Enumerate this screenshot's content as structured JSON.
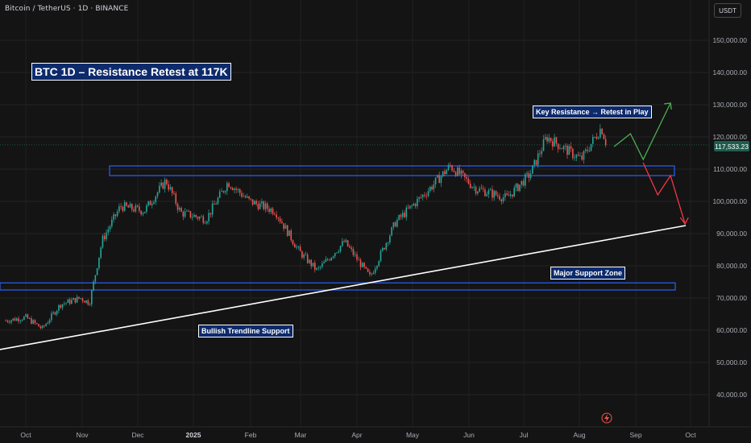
{
  "header": {
    "symbol_line": "Bitcoin / TetherUS · 1D · BINANCE",
    "currency": "USDT"
  },
  "title": "BTC 1D – Resistance Retest at 117K",
  "annotations": {
    "resistance": "Key Resistance → Retest in Play",
    "support_zone": "Major Support Zone",
    "trendline": "Bullish Trendline Support"
  },
  "last_price_label": "117,533.23",
  "colors": {
    "background": "#141414",
    "up_candle": "#26a69a",
    "down_candle": "#ef5350",
    "zone_border": "#2962ff",
    "label_fill": "#0d2a6b",
    "bull_path": "#4caf50",
    "bear_path": "#f23645",
    "trendline": "#ffffff"
  },
  "chart_data": {
    "type": "candlestick",
    "y_axis": {
      "ticks": [
        "150,000.00",
        "140,000.00",
        "130,000.00",
        "120,000.00",
        "110,000.00",
        "100,000.00",
        "90,000.00",
        "80,000.00",
        "70,000.00",
        "60,000.00",
        "50,000.00",
        "40,000.00"
      ],
      "tick_values": [
        150000,
        140000,
        130000,
        120000,
        110000,
        100000,
        90000,
        80000,
        70000,
        60000,
        50000,
        40000
      ],
      "range": [
        32000,
        163000
      ]
    },
    "x_axis": {
      "labels": [
        "Oct",
        "Nov",
        "Dec",
        "2025",
        "Feb",
        "Mar",
        "Apr",
        "May",
        "Jun",
        "Jul",
        "Aug",
        "Sep",
        "Oct"
      ],
      "label_dates": [
        "2024-10-01",
        "2024-11-01",
        "2024-12-01",
        "2025-01-01",
        "2025-02-01",
        "2025-03-01",
        "2025-04-01",
        "2025-05-01",
        "2025-06-01",
        "2025-07-01",
        "2025-08-01",
        "2025-09-01",
        "2025-10-01"
      ]
    },
    "last_price": 117533.23,
    "approx_close_path": [
      {
        "date": "2024-09-20",
        "close": 63000
      },
      {
        "date": "2024-10-01",
        "close": 64000
      },
      {
        "date": "2024-10-10",
        "close": 60500
      },
      {
        "date": "2024-10-20",
        "close": 68000
      },
      {
        "date": "2024-10-31",
        "close": 70000
      },
      {
        "date": "2024-11-05",
        "close": 68500
      },
      {
        "date": "2024-11-12",
        "close": 88000
      },
      {
        "date": "2024-11-22",
        "close": 98500
      },
      {
        "date": "2024-12-05",
        "close": 97000
      },
      {
        "date": "2024-12-17",
        "close": 106500
      },
      {
        "date": "2024-12-25",
        "close": 96500
      },
      {
        "date": "2025-01-08",
        "close": 94500
      },
      {
        "date": "2025-01-20",
        "close": 106000
      },
      {
        "date": "2025-02-01",
        "close": 100000
      },
      {
        "date": "2025-02-15",
        "close": 97000
      },
      {
        "date": "2025-02-28",
        "close": 84500
      },
      {
        "date": "2025-03-10",
        "close": 78500
      },
      {
        "date": "2025-03-25",
        "close": 87500
      },
      {
        "date": "2025-04-08",
        "close": 76500
      },
      {
        "date": "2025-04-22",
        "close": 93500
      },
      {
        "date": "2025-05-10",
        "close": 103500
      },
      {
        "date": "2025-05-22",
        "close": 111000
      },
      {
        "date": "2025-06-05",
        "close": 104000
      },
      {
        "date": "2025-06-22",
        "close": 101000
      },
      {
        "date": "2025-07-05",
        "close": 108500
      },
      {
        "date": "2025-07-14",
        "close": 120000
      },
      {
        "date": "2025-08-02",
        "close": 113000
      },
      {
        "date": "2025-08-13",
        "close": 123000
      },
      {
        "date": "2025-08-16",
        "close": 117533
      }
    ],
    "resistance_zone": {
      "low": 108000,
      "high": 111000,
      "from": "2024-12-10",
      "to": "2025-10-01"
    },
    "support_zone": {
      "low": 72500,
      "high": 74700,
      "from": "2024-09-20",
      "to": "2025-10-01"
    },
    "trendline": [
      {
        "date": "2024-09-20",
        "price": 54000
      },
      {
        "date": "2025-10-01",
        "price": 92500
      }
    ],
    "bull_projection": [
      {
        "date": "2025-08-20",
        "price": 117000
      },
      {
        "date": "2025-08-29",
        "price": 121000
      },
      {
        "date": "2025-09-05",
        "price": 113000
      },
      {
        "date": "2025-09-20",
        "price": 130500
      }
    ],
    "bear_projection": [
      {
        "date": "2025-09-05",
        "price": 112000
      },
      {
        "date": "2025-09-13",
        "price": 102000
      },
      {
        "date": "2025-09-20",
        "price": 108000
      },
      {
        "date": "2025-09-28",
        "price": 93000
      }
    ]
  }
}
